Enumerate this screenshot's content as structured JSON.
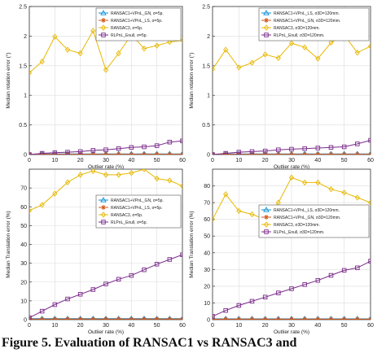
{
  "caption": "Figure 5. Evaluation of RANSAC1 vs RANSAC3 and",
  "series_styles": [
    {
      "color": "#0a8fd6",
      "marker": "triangle"
    },
    {
      "color": "#d2551a",
      "marker": "star"
    },
    {
      "color": "#e8b800",
      "marker": "diamond"
    },
    {
      "color": "#7a2a8a",
      "marker": "square"
    }
  ],
  "chart_data": [
    {
      "type": "line",
      "xlabel": "Outlier rate (%)",
      "ylabel": "Median rotation error (°)",
      "xlim": [
        0,
        60
      ],
      "ylim": [
        0,
        2.5
      ],
      "xticks": [
        0,
        10,
        20,
        30,
        40,
        50,
        60
      ],
      "yticks": [
        0,
        0.5,
        1,
        1.5,
        2,
        2.5
      ],
      "grid": true,
      "legend_position": "top-right",
      "x": [
        0,
        5,
        10,
        15,
        20,
        25,
        30,
        35,
        40,
        45,
        50,
        55,
        60
      ],
      "series": [
        {
          "name": "RANSAC1+VPnL_GN, σ=5p.",
          "values": [
            0.0,
            0.01,
            0.01,
            0.01,
            0.01,
            0.01,
            0.01,
            0.01,
            0.01,
            0.01,
            0.01,
            0.01,
            0.01
          ]
        },
        {
          "name": "RANSAC1+VPnL_LS, σ=5p.",
          "values": [
            0.0,
            0.005,
            0.005,
            0.005,
            0.005,
            0.005,
            0.005,
            0.005,
            0.005,
            0.005,
            0.005,
            0.005,
            0.005
          ]
        },
        {
          "name": "RANSAC3, σ=5p.",
          "values": [
            1.38,
            1.57,
            1.99,
            1.77,
            1.71,
            2.09,
            1.43,
            1.71,
            2.02,
            1.79,
            1.84,
            1.9,
            1.93
          ]
        },
        {
          "name": "RLPnL_Enull, σ=5p.",
          "values": [
            0.0,
            0.02,
            0.03,
            0.04,
            0.05,
            0.07,
            0.08,
            0.1,
            0.12,
            0.13,
            0.15,
            0.21,
            0.23
          ]
        }
      ]
    },
    {
      "type": "line",
      "xlabel": "Outlier rate (%)",
      "ylabel": "Median rotation error (°)",
      "xlim": [
        0,
        60
      ],
      "ylim": [
        0,
        2.5
      ],
      "xticks": [
        0,
        10,
        20,
        30,
        40,
        50,
        60
      ],
      "yticks": [
        0,
        0.5,
        1,
        1.5,
        2,
        2.5
      ],
      "grid": true,
      "legend_position": "top-right",
      "x": [
        0,
        5,
        10,
        15,
        20,
        25,
        30,
        35,
        40,
        45,
        50,
        55,
        60
      ],
      "series": [
        {
          "name": "RANSAC1+VPnL_LS, σ3D=120mm.",
          "values": [
            0.0,
            0.01,
            0.01,
            0.01,
            0.01,
            0.01,
            0.01,
            0.01,
            0.01,
            0.01,
            0.01,
            0.01,
            0.01
          ]
        },
        {
          "name": "RANSAC1+VPnL_GN, σ3D=120mm.",
          "values": [
            0.0,
            0.005,
            0.005,
            0.005,
            0.005,
            0.005,
            0.005,
            0.005,
            0.005,
            0.005,
            0.005,
            0.005,
            0.005
          ]
        },
        {
          "name": "RANSAC3, σ3D=120mm.",
          "values": [
            1.44,
            1.77,
            1.47,
            1.55,
            1.69,
            1.63,
            1.88,
            1.81,
            1.62,
            1.89,
            2.02,
            1.72,
            1.83
          ]
        },
        {
          "name": "RLPnL_Enull, σ3D=120mm.",
          "values": [
            0.0,
            0.02,
            0.04,
            0.05,
            0.06,
            0.08,
            0.09,
            0.1,
            0.11,
            0.12,
            0.13,
            0.18,
            0.24
          ]
        }
      ]
    },
    {
      "type": "line",
      "xlabel": "Outlier rate (%)",
      "ylabel": "Median Translation error (%)",
      "xlim": [
        0,
        60
      ],
      "ylim": [
        0,
        80
      ],
      "xticks": [
        0,
        10,
        20,
        30,
        40,
        50,
        60
      ],
      "yticks": [
        0,
        10,
        20,
        30,
        40,
        50,
        60,
        70
      ],
      "grid": true,
      "legend_position": "center-right",
      "x": [
        0,
        5,
        10,
        15,
        20,
        25,
        30,
        35,
        40,
        45,
        50,
        55,
        60
      ],
      "series": [
        {
          "name": "RANSAC1+VPnL_GN, σ=5p.",
          "values": [
            0.5,
            0.5,
            0.5,
            0.5,
            0.5,
            0.5,
            0.5,
            0.5,
            0.5,
            0.5,
            0.5,
            0.5,
            0.5
          ]
        },
        {
          "name": "RANSAC1+VPnL_LS, σ=5p.",
          "values": [
            0.3,
            0.3,
            0.3,
            0.3,
            0.3,
            0.3,
            0.3,
            0.3,
            0.3,
            0.3,
            0.3,
            0.3,
            0.3
          ]
        },
        {
          "name": "RANSAC3, σ=5p.",
          "values": [
            58,
            61,
            67,
            73,
            77,
            79,
            77,
            77,
            78,
            80,
            75,
            74,
            71
          ]
        },
        {
          "name": "RLPnL_Enull, σ=5p.",
          "values": [
            1,
            4.5,
            8,
            11,
            13.5,
            16,
            19,
            21.5,
            23.5,
            26.5,
            29.5,
            32,
            34.5
          ]
        }
      ]
    },
    {
      "type": "line",
      "xlabel": "Outlier rate (%)",
      "ylabel": "Median Translation error (%)",
      "xlim": [
        0,
        60
      ],
      "ylim": [
        0,
        90
      ],
      "xticks": [
        0,
        10,
        20,
        30,
        40,
        50,
        60
      ],
      "yticks": [
        0,
        10,
        20,
        30,
        40,
        50,
        60,
        70,
        80
      ],
      "grid": true,
      "legend_position": "center-right",
      "x": [
        0,
        5,
        10,
        15,
        20,
        25,
        30,
        35,
        40,
        45,
        50,
        55,
        60
      ],
      "series": [
        {
          "name": "RANSAC1+VPnL_LS, σ3D=120mm.",
          "values": [
            0.5,
            0.5,
            0.5,
            0.5,
            0.5,
            0.5,
            0.5,
            0.5,
            0.5,
            0.5,
            0.5,
            0.5,
            0.5
          ]
        },
        {
          "name": "RANSAC1+VPnL_GN, σ3D=120mm.",
          "values": [
            0.3,
            0.3,
            0.3,
            0.3,
            0.3,
            0.3,
            0.3,
            0.3,
            0.3,
            0.3,
            0.3,
            0.3,
            0.3
          ]
        },
        {
          "name": "RANSAC3, σ3D=120mm.",
          "values": [
            60,
            75,
            65,
            63,
            60,
            70,
            85,
            82,
            82,
            78,
            76,
            73,
            70
          ]
        },
        {
          "name": "RLPnL_Enull, σ3D=120mm.",
          "values": [
            2,
            5.5,
            8.5,
            11,
            13.5,
            16,
            18.5,
            21,
            23.5,
            26.5,
            29.5,
            31,
            35
          ]
        }
      ]
    }
  ]
}
